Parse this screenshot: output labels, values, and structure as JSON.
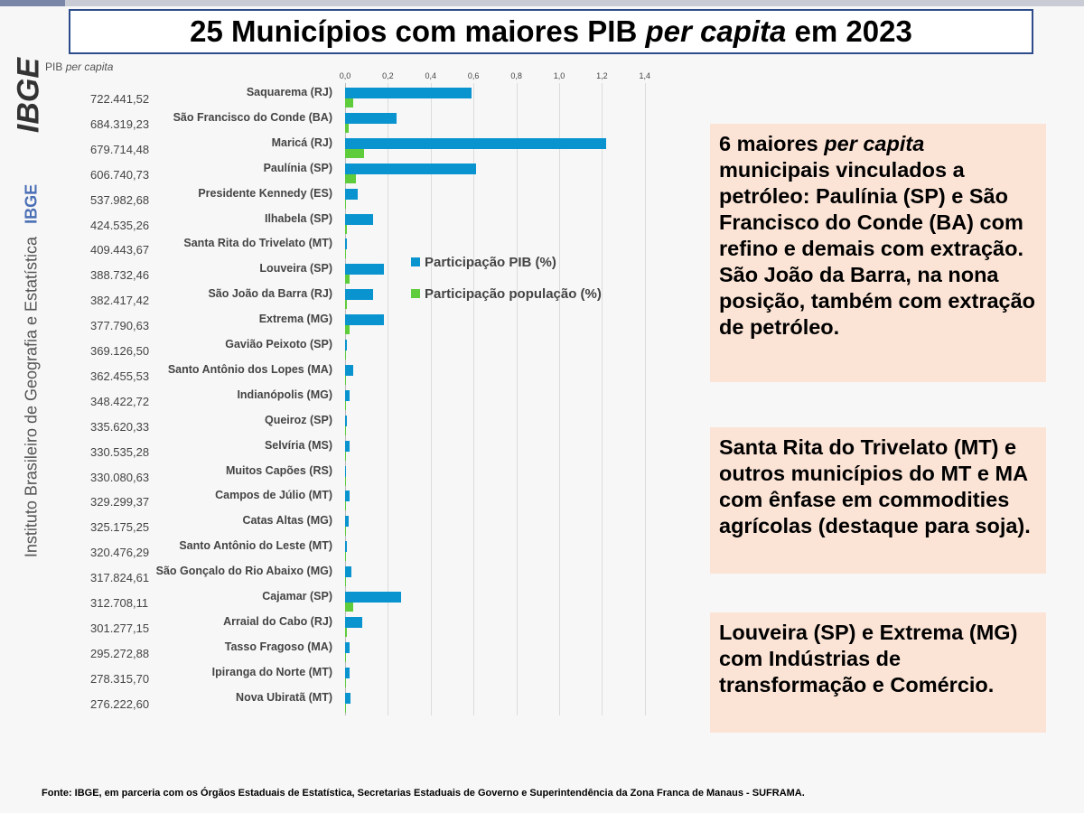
{
  "title_parts": {
    "a": "25 Municípios com maiores PIB ",
    "b": "per capita",
    "c": " em 2023"
  },
  "sidebar": {
    "logo": "IBGE",
    "institute": "Instituto Brasileiro de Geografia e Estatística",
    "abbr": "IBGE"
  },
  "pib_header": {
    "a": "PIB ",
    "b": "per capita"
  },
  "chart_data": {
    "type": "bar",
    "orientation": "horizontal",
    "title": "25 Municípios com maiores PIB per capita em 2023",
    "xlim": [
      0,
      1.4
    ],
    "ticks": [
      "0,0",
      "0,2",
      "0,4",
      "0,6",
      "0,8",
      "1,0",
      "1,2",
      "1,4"
    ],
    "colors": {
      "pib": "#0a94cf",
      "pop": "#5fcc3c"
    },
    "legend": [
      "Participação PIB (%)",
      "Participação população (%)"
    ],
    "categories": [
      "Saquarema (RJ)",
      "São Francisco do Conde (BA)",
      "Maricá (RJ)",
      "Paulínia (SP)",
      "Presidente Kennedy (ES)",
      "Ilhabela (SP)",
      "Santa Rita do Trivelato (MT)",
      "Louveira (SP)",
      "São João da Barra (RJ)",
      "Extrema (MG)",
      "Gavião Peixoto (SP)",
      "Santo Antônio dos Lopes (MA)",
      "Indianópolis (MG)",
      "Queiroz (SP)",
      "Selvíria (MS)",
      "Muitos Capões (RS)",
      "Campos de Júlio (MT)",
      "Catas Altas (MG)",
      "Santo Antônio do Leste (MT)",
      "São Gonçalo do Rio Abaixo (MG)",
      "Cajamar (SP)",
      "Arraial do Cabo (RJ)",
      "Tasso Fragoso (MA)",
      "Ipiranga do Norte (MT)",
      "Nova Ubiratã (MT)"
    ],
    "pib_per_capita": [
      "722.441,52",
      "684.319,23",
      "679.714,48",
      "606.740,73",
      "537.982,68",
      "424.535,26",
      "409.443,67",
      "388.732,46",
      "382.417,42",
      "377.790,63",
      "369.126,50",
      "362.455,53",
      "348.422,72",
      "335.620,33",
      "330.535,28",
      "330.080,63",
      "329.299,37",
      "325.175,25",
      "320.476,29",
      "317.824,61",
      "312.708,11",
      "301.277,15",
      "295.272,88",
      "278.315,70",
      "276.222,60"
    ],
    "series": [
      {
        "name": "Participação PIB (%)",
        "values": [
          0.59,
          0.24,
          1.22,
          0.61,
          0.06,
          0.13,
          0.01,
          0.18,
          0.13,
          0.18,
          0.01,
          0.04,
          0.02,
          0.01,
          0.02,
          0.005,
          0.02,
          0.015,
          0.01,
          0.03,
          0.26,
          0.08,
          0.02,
          0.02,
          0.025
        ]
      },
      {
        "name": "Participação população (%)",
        "values": [
          0.04,
          0.015,
          0.09,
          0.05,
          0.002,
          0.01,
          0.001,
          0.02,
          0.01,
          0.02,
          0.003,
          0.003,
          0.003,
          0.002,
          0.003,
          0.002,
          0.003,
          0.003,
          0.002,
          0.003,
          0.04,
          0.01,
          0.003,
          0.003,
          0.003
        ]
      }
    ]
  },
  "notes": [
    {
      "a": "6 maiores ",
      "b": "per capita",
      "c": " municipais vinculados a petróleo: Paulínia (SP) e São Francisco do Conde (BA)  com refino e demais com extração. São João da Barra, na nona posição, também com extração de petróleo."
    },
    {
      "a": "Santa Rita do Trivelato (MT) e outros municípios do MT e MA com ênfase em commodities agrícolas (destaque para soja)."
    },
    {
      "a": "Louveira (SP) e Extrema (MG) com Indústrias de transformação e Comércio."
    }
  ],
  "source": "Fonte: IBGE, em parceria com os Órgãos Estaduais de Estatística, Secretarias Estaduais de Governo e Superintendência da Zona Franca de Manaus - SUFRAMA."
}
